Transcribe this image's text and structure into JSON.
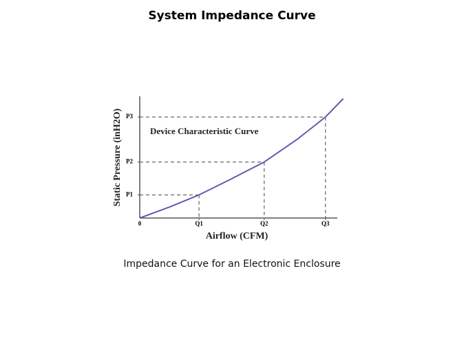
{
  "chart_data": {
    "type": "line",
    "title": "System Impedance Curve",
    "caption": "Impedance Curve for an Electronic Enclosure",
    "annotation": "Device Characteristic Curve",
    "x_label": "Airflow (CFM)",
    "y_label": "Static Pressure (inH2O)",
    "x": [
      0,
      15,
      30,
      45,
      63,
      80,
      94,
      103
    ],
    "values": [
      0,
      9,
      19,
      31,
      46,
      65,
      83,
      98
    ],
    "color": "#5b5bb0",
    "xlim": [
      0,
      100
    ],
    "ylim": [
      0,
      100
    ],
    "xticks": [
      0,
      {
        "value": 30,
        "label": "Q1"
      },
      {
        "value": 63,
        "label": "Q2"
      },
      {
        "value": 94,
        "label": "Q3"
      }
    ],
    "yticks": [
      {
        "value": 19,
        "label": "P1"
      },
      {
        "value": 46,
        "label": "P2"
      },
      {
        "value": 83,
        "label": "P3"
      }
    ]
  }
}
